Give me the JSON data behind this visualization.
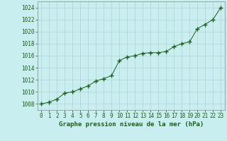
{
  "x": [
    0,
    1,
    2,
    3,
    4,
    5,
    6,
    7,
    8,
    9,
    10,
    11,
    12,
    13,
    14,
    15,
    16,
    17,
    18,
    19,
    20,
    21,
    22,
    23
  ],
  "y": [
    1008.0,
    1008.3,
    1008.8,
    1009.8,
    1010.0,
    1010.5,
    1011.0,
    1011.8,
    1012.2,
    1012.7,
    1015.2,
    1015.8,
    1016.0,
    1016.4,
    1016.5,
    1016.5,
    1016.7,
    1017.5,
    1018.0,
    1018.3,
    1020.5,
    1021.2,
    1022.0,
    1024.0
  ],
  "line_color": "#1a5e1a",
  "marker": "+",
  "marker_color": "#1a5e1a",
  "bg_color": "#c8eef0",
  "grid_color": "#b0d0d8",
  "xlabel": "Graphe pression niveau de la mer (hPa)",
  "xlabel_color": "#1a5e1a",
  "tick_color": "#1a5e1a",
  "ylim": [
    1007,
    1025
  ],
  "xlim": [
    -0.5,
    23.5
  ],
  "yticks": [
    1008,
    1010,
    1012,
    1014,
    1016,
    1018,
    1020,
    1022,
    1024
  ],
  "xticks": [
    0,
    1,
    2,
    3,
    4,
    5,
    6,
    7,
    8,
    9,
    10,
    11,
    12,
    13,
    14,
    15,
    16,
    17,
    18,
    19,
    20,
    21,
    22,
    23
  ],
  "xlabel_fontsize": 6.5,
  "tick_fontsize": 5.5
}
